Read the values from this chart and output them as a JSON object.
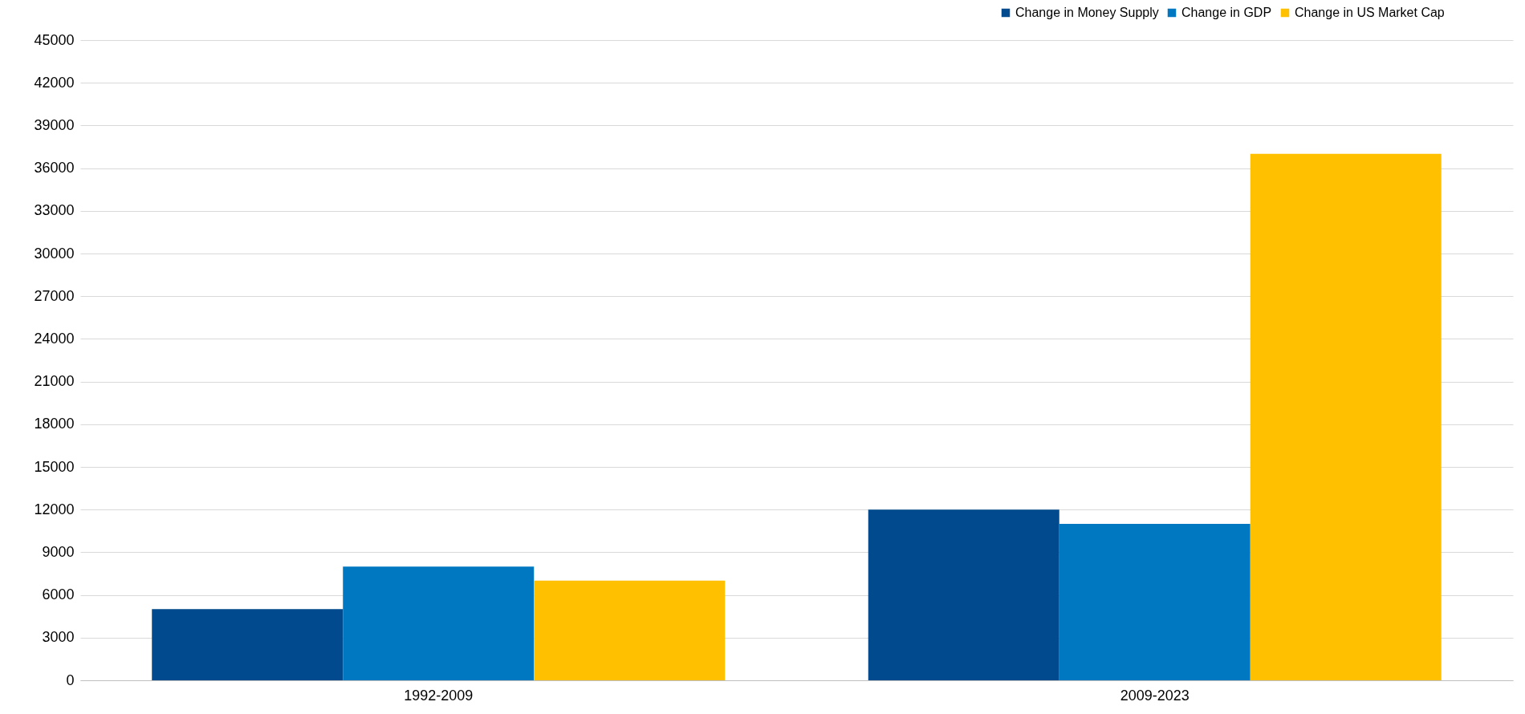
{
  "chart_data": {
    "type": "bar",
    "categories": [
      "1992-2009",
      "2009-2023"
    ],
    "series": [
      {
        "name": "Change in Money Supply",
        "color": "#004a8d",
        "values": [
          5000,
          12000
        ]
      },
      {
        "name": "Change in GDP",
        "color": "#0078c1",
        "values": [
          8000,
          11000
        ]
      },
      {
        "name": "Change in US Market Cap",
        "color": "#ffc000",
        "values": [
          7000,
          37000
        ]
      }
    ],
    "ylim": [
      0,
      45000
    ],
    "yticks": [
      0,
      3000,
      6000,
      9000,
      12000,
      15000,
      18000,
      21000,
      24000,
      27000,
      30000,
      33000,
      36000,
      39000,
      42000,
      45000
    ],
    "grid": true,
    "legend": "top right"
  }
}
